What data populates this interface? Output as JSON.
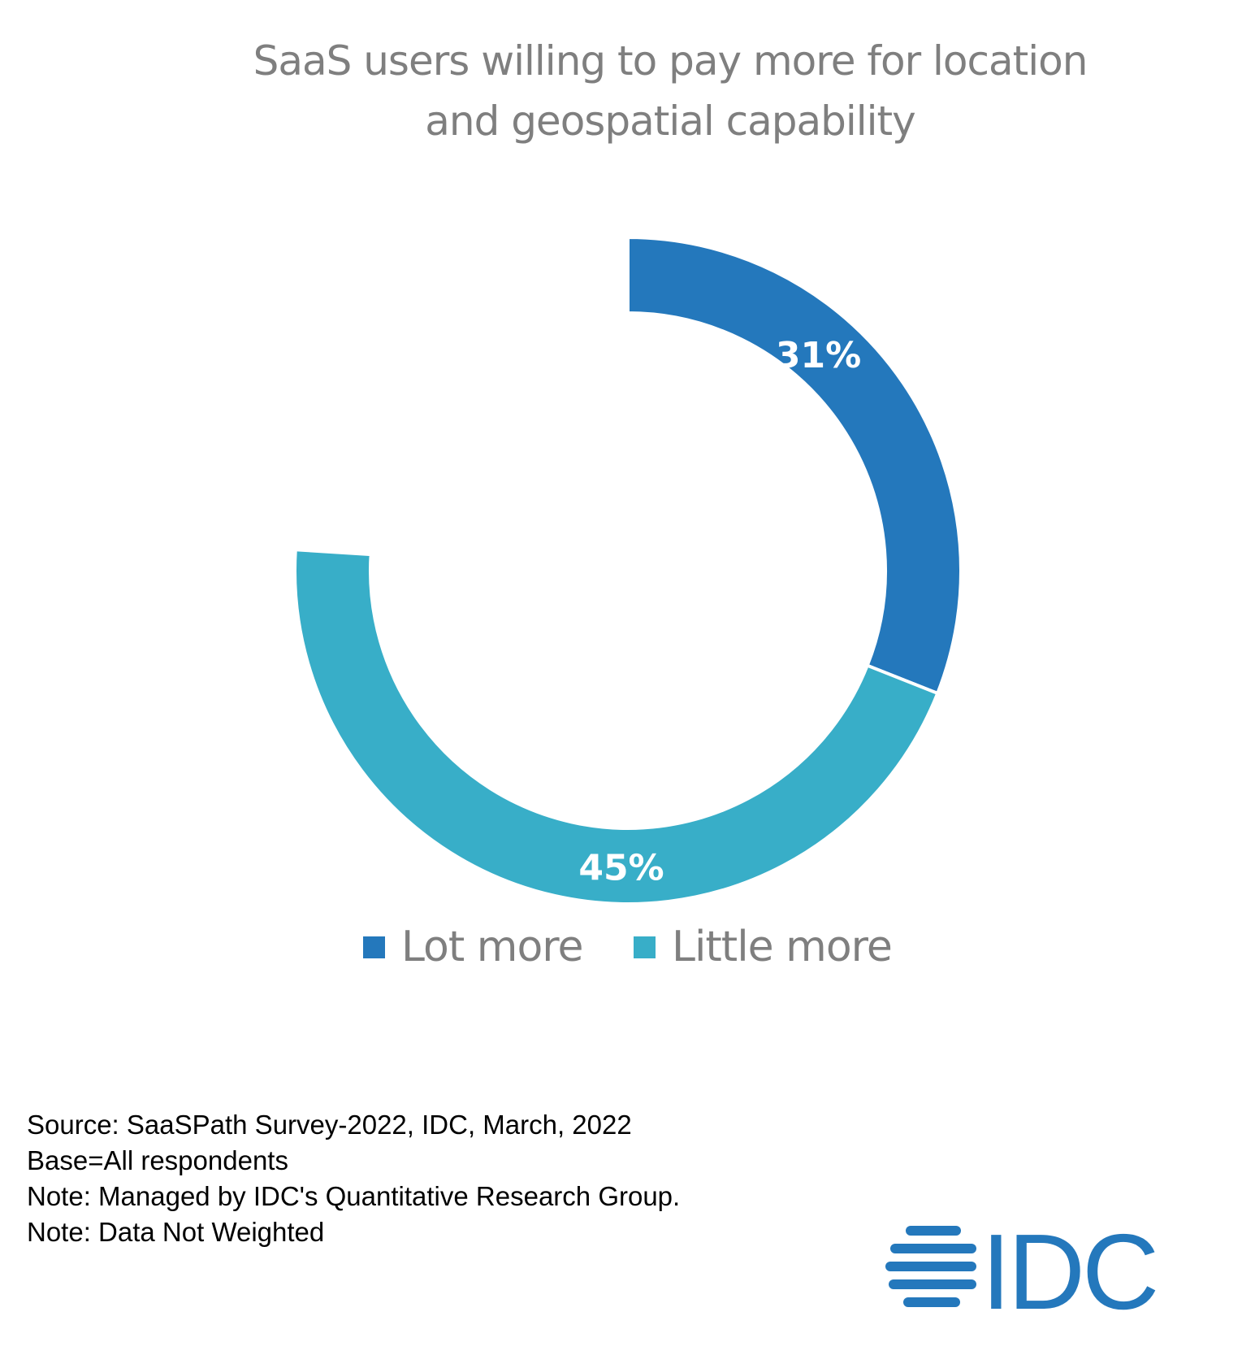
{
  "chart_data": {
    "type": "pie",
    "variant": "donut",
    "title": "SaaS users willing to pay more for location and geospatial capability",
    "title_lines": [
      "SaaS users willing to pay more for location",
      "and geospatial capability"
    ],
    "categories": [
      "Lot more",
      "Little more"
    ],
    "values": [
      31,
      45
    ],
    "unit": "%",
    "data_labels": [
      "31%",
      "45%"
    ],
    "colors": [
      "#2478BC",
      "#38AEC8"
    ],
    "legend_position": "bottom"
  },
  "footer": {
    "lines": [
      "Source: SaaSPath Survey-2022, IDC, March, 2022",
      "Base=All respondents",
      "Note: Managed by IDC's Quantitative Research Group.",
      "Note: Data Not Weighted"
    ]
  },
  "logo": {
    "text": "IDC",
    "color": "#2478BC",
    "icon": "idc-globe-icon"
  },
  "colors": {
    "title": "#7F7F7F",
    "background": "#FFFFFF"
  }
}
